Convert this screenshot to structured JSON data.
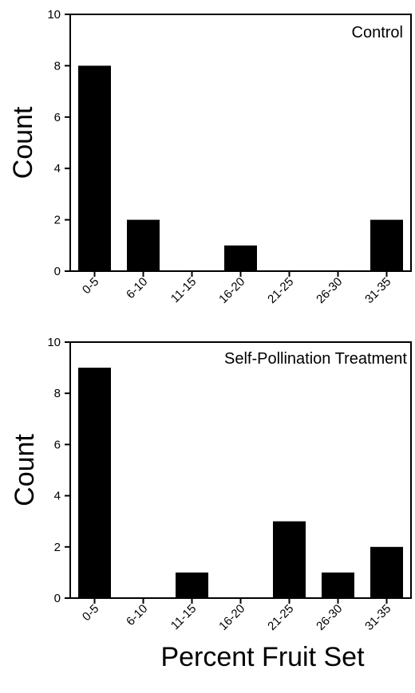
{
  "chart_data": [
    {
      "type": "bar",
      "title": "Control",
      "ylabel": "Count",
      "xlabel": "",
      "categories": [
        "0-5",
        "6-10",
        "11-15",
        "16-20",
        "21-25",
        "26-30",
        "31-35"
      ],
      "values": [
        8,
        2,
        0,
        1,
        0,
        0,
        2
      ],
      "ylim": [
        0,
        10
      ],
      "yticks": [
        0,
        2,
        4,
        6,
        8,
        10
      ],
      "bar_color": "#000000"
    },
    {
      "type": "bar",
      "title": "Self-Pollination Treatment",
      "ylabel": "Count",
      "xlabel": "Percent Fruit Set",
      "categories": [
        "0-5",
        "6-10",
        "11-15",
        "16-20",
        "21-25",
        "26-30",
        "31-35"
      ],
      "values": [
        9,
        0,
        1,
        0,
        3,
        1,
        2
      ],
      "ylim": [
        0,
        10
      ],
      "yticks": [
        0,
        2,
        4,
        6,
        8,
        10
      ],
      "bar_color": "#000000"
    }
  ]
}
